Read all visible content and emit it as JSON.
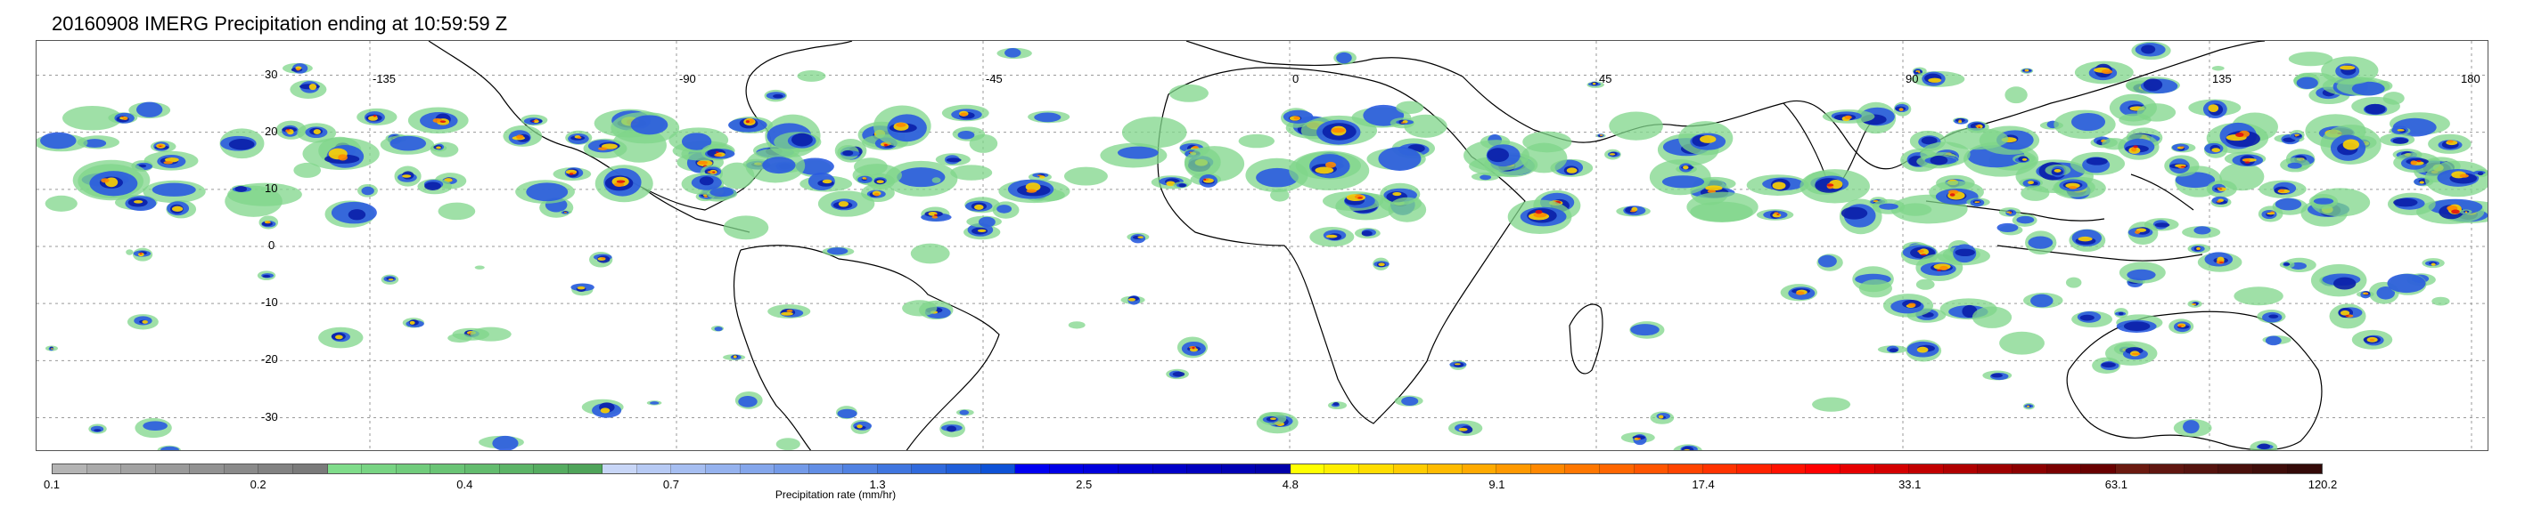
{
  "title": "20160908 IMERG Precipitation ending at 10:59:59 Z",
  "map": {
    "latitude_labels": [
      "30",
      "20",
      "10",
      "0",
      "-10",
      "-20",
      "-30"
    ],
    "longitude_labels": [
      "-135",
      "-90",
      "-45",
      "0",
      "45",
      "90",
      "135",
      "180"
    ],
    "grid": "dashed",
    "projection": "equirectangular"
  },
  "colorbar": {
    "label": "Precipitation rate (mm/hr)",
    "ticks": [
      "0.1",
      "0.2",
      "0.4",
      "0.7",
      "1.3",
      "2.5",
      "4.8",
      "9.1",
      "17.4",
      "33.1",
      "63.1",
      "120.2"
    ],
    "colors": [
      "#b4b4b4",
      "#aaaaaa",
      "#a2a2a2",
      "#9a9a9a",
      "#929292",
      "#8a8a8a",
      "#828282",
      "#7a7a7a",
      "#7fdc8a",
      "#78d483",
      "#71cc7c",
      "#6ac475",
      "#63bc6e",
      "#5cb467",
      "#55ac60",
      "#4fa45a",
      "#c8d6f7",
      "#b7caf4",
      "#a6bef1",
      "#95b2ee",
      "#84a6eb",
      "#739ae8",
      "#628ee5",
      "#5182e2",
      "#4076df",
      "#306adc",
      "#1f5ed9",
      "#0e52d6",
      "#0000f0",
      "#0000e6",
      "#0000dc",
      "#0000d2",
      "#0000c8",
      "#0000be",
      "#0000b4",
      "#0000aa",
      "#ffff00",
      "#ffee00",
      "#ffdd00",
      "#ffcc00",
      "#ffbb00",
      "#ffaa00",
      "#ff9900",
      "#ff8800",
      "#ff7700",
      "#ff6600",
      "#ff5500",
      "#ff4400",
      "#ff3300",
      "#ff2200",
      "#ff1100",
      "#ff0000",
      "#e60000",
      "#d40000",
      "#c20000",
      "#b00000",
      "#9e0000",
      "#8c0000",
      "#7a0000",
      "#680000",
      "#6b1a10",
      "#601610",
      "#55130e",
      "#4a100c",
      "#3f0d0a",
      "#340a08"
    ]
  },
  "legend_colors": {
    "light_green": "#7fd68a",
    "blue": "#2a5be0",
    "dark_blue": "#0a1fa8",
    "yellow": "#ffd400",
    "orange": "#ff8a00",
    "red": "#e01010",
    "dark_red": "#6b0a0a"
  }
}
